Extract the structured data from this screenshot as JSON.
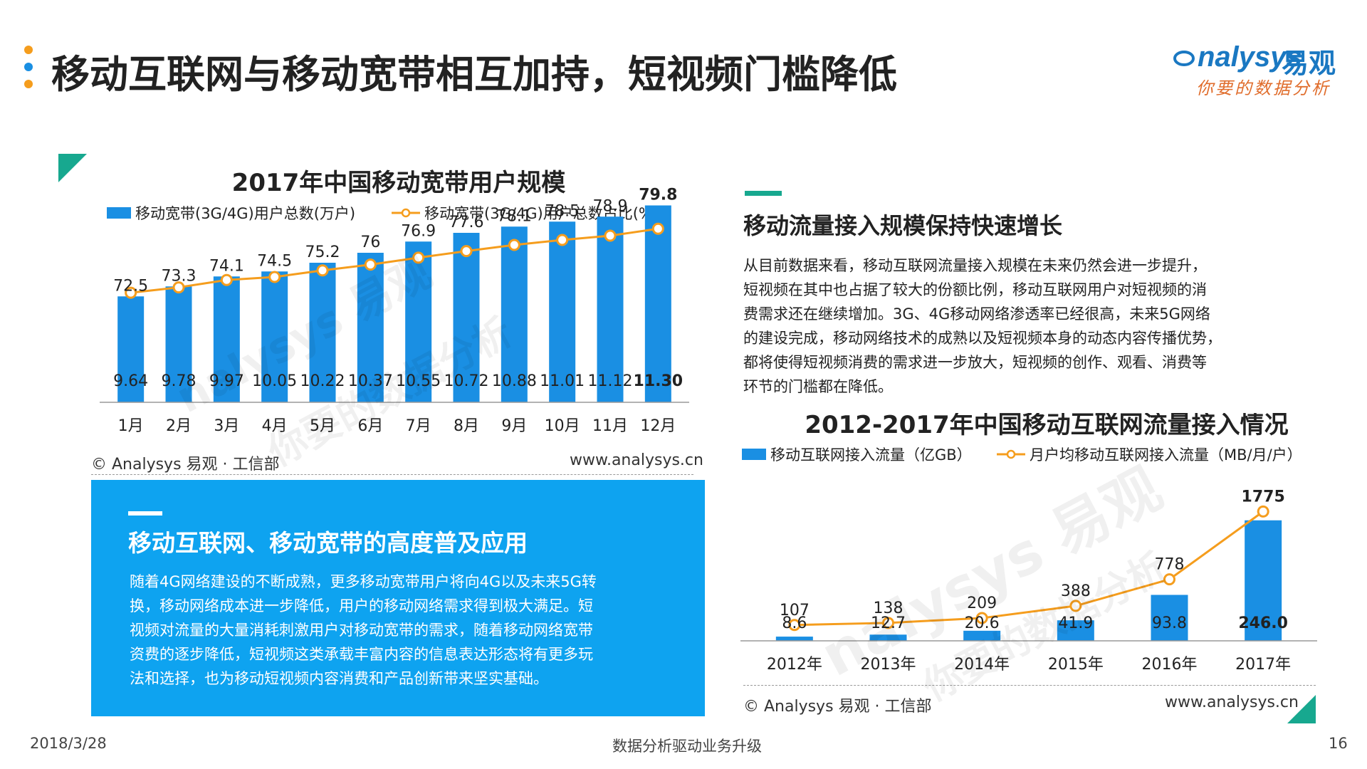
{
  "page": {
    "title": "移动互联网与移动宽带相互加持，短视频门槛降低",
    "logo_en": "nalysys",
    "logo_cn": "易观",
    "logo_tagline": "你要的数据分析",
    "date": "2018/3/28",
    "footer_center": "数据分析驱动业务升级",
    "page_number": "16",
    "watermark_en": "nalysys",
    "watermark_cn": "易观",
    "watermark_tag": "你要的数据分析"
  },
  "colors": {
    "bar": "#1a8fe3",
    "line": "#f59d1d",
    "accent_teal": "#17a88f",
    "panel": "#0ea3f0"
  },
  "right_text": {
    "heading": "移动流量接入规模保持快速增长",
    "lines": [
      "从目前数据来看，移动互联网流量接入规模在未来仍然会进一步提升，",
      "短视频在其中也占据了较大的份额比例，移动互联网用户对短视频的消",
      "费需求还在继续增加。3G、4G移动网络渗透率已经很高，未来5G网络",
      "的建设完成，移动网络技术的成熟以及短视频本身的动态内容传播优势，",
      "都将使得短视频消费的需求进一步放大，短视频的创作、观看、消费等",
      "环节的门槛都在降低。"
    ]
  },
  "panel": {
    "heading": "移动互联网、移动宽带的高度普及应用",
    "lines": [
      "随着4G网络建设的不断成熟，更多移动宽带用户将向4G以及未来5G转",
      "换，移动网络成本进一步降低，用户的移动网络需求得到极大满足。短",
      "视频对流量的大量消耗刺激用户对移动宽带的需求，随着移动网络宽带",
      "资费的逐步降低，短视频这类承载丰富内容的信息表达形态将有更多玩",
      "法和选择，也为移动短视频内容消费和产品创新带来坚实基础。"
    ]
  },
  "chart_data": [
    {
      "type": "bar",
      "title": "2017年中国移动宽带用户规模",
      "categories": [
        "1月",
        "2月",
        "3月",
        "4月",
        "5月",
        "6月",
        "7月",
        "8月",
        "9月",
        "10月",
        "11月",
        "12月"
      ],
      "series": [
        {
          "name": "移动宽带(3G/4G)用户总数(万户)",
          "kind": "bar",
          "values": [
            72.5,
            73.3,
            74.1,
            74.5,
            75.2,
            76,
            76.9,
            77.6,
            78.1,
            78.5,
            78.9,
            79.8
          ],
          "labels": [
            "72.5",
            "73.3",
            "74.1",
            "74.5",
            "75.2",
            "76",
            "76.9",
            "77.6",
            "78.1",
            "78.5",
            "78.9",
            "79.8"
          ]
        },
        {
          "name": "移动宽带(3G/4G)用户总数占比(%)",
          "kind": "line",
          "values": [
            9.64,
            9.78,
            9.97,
            10.05,
            10.22,
            10.37,
            10.55,
            10.72,
            10.88,
            11.01,
            11.12,
            11.3
          ],
          "labels": [
            "9.64",
            "9.78",
            "9.97",
            "10.05",
            "10.22",
            "10.37",
            "10.55",
            "10.72",
            "10.88",
            "11.01",
            "11.12",
            "11.30"
          ]
        }
      ],
      "bar_range": [
        64,
        80
      ],
      "line_range": [
        9.2,
        11.6
      ],
      "source": "© Analysys 易观 · 工信部",
      "site": "www.analysys.cn"
    },
    {
      "type": "bar",
      "title": "2012-2017年中国移动互联网流量接入情况",
      "categories": [
        "2012年",
        "2013年",
        "2014年",
        "2015年",
        "2016年",
        "2017年"
      ],
      "series": [
        {
          "name": "移动互联网接入流量（亿GB）",
          "kind": "bar",
          "values": [
            8.6,
            12.7,
            20.6,
            41.9,
            93.8,
            246.0
          ],
          "labels": [
            "8.6",
            "12.7",
            "20.6",
            "41.9",
            "93.8",
            "246.0"
          ]
        },
        {
          "name": "月户均移动互联网接入流量（MB/月/户）",
          "kind": "line",
          "values": [
            107,
            138,
            209,
            388,
            778,
            1775
          ],
          "labels": [
            "107",
            "138",
            "209",
            "388",
            "778",
            "1775"
          ]
        }
      ],
      "bar_range": [
        0,
        250
      ],
      "line_range": [
        0,
        1800
      ],
      "source": "© Analysys 易观 · 工信部",
      "site": "www.analysys.cn"
    }
  ]
}
